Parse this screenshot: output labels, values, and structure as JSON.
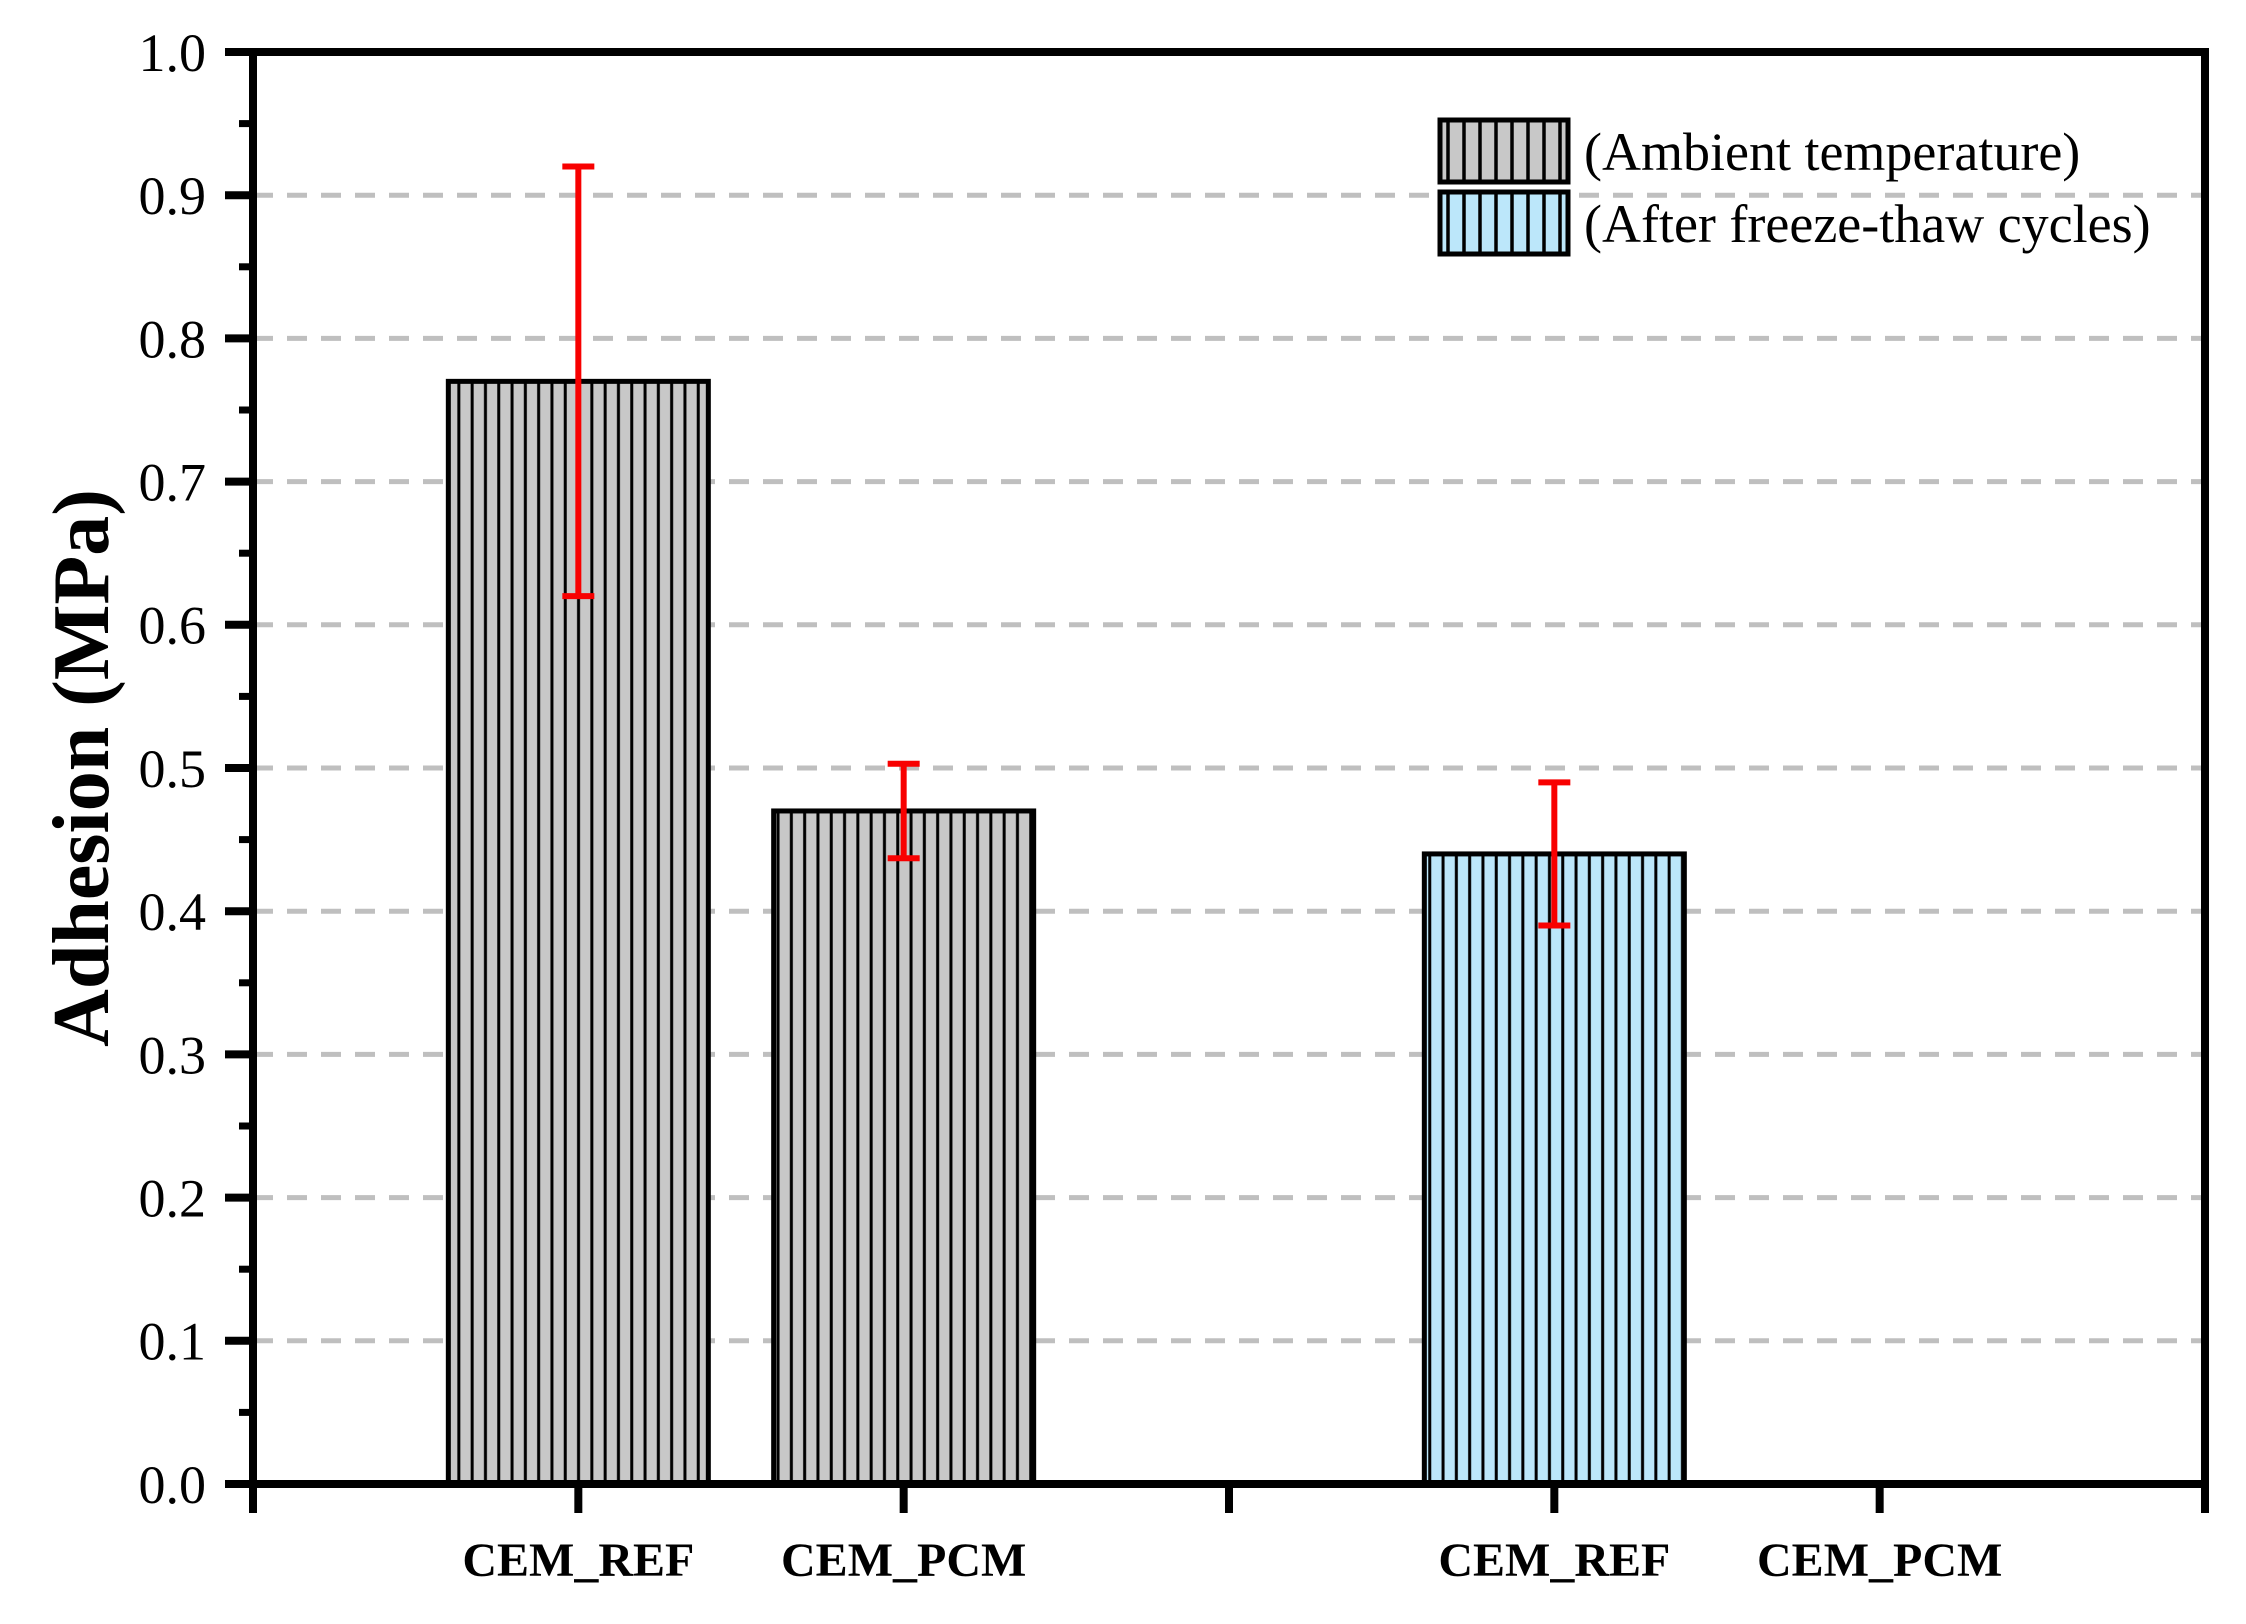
{
  "chart_data": {
    "type": "bar",
    "title": "",
    "xlabel": "",
    "ylabel": "Adhesion (MPa)",
    "ylim": [
      0.0,
      1.0
    ],
    "ytick_labels": [
      "0.0",
      "0.1",
      "0.2",
      "0.3",
      "0.4",
      "0.5",
      "0.6",
      "0.7",
      "0.8",
      "0.9",
      "1.0"
    ],
    "minor_ticks": "every 0.05",
    "grid": "horizontal dashed gridlines at each 0.1 from 0.1 to 0.9",
    "legend_position": "top-right inside plot",
    "categories": [
      "CEM_REF",
      "CEM_PCM",
      "",
      "CEM_REF",
      "CEM_PCM"
    ],
    "series": [
      {
        "name": "(Ambient temperature)",
        "fill_color": "#c8c8c8",
        "hatch": "vertical-lines",
        "points": [
          {
            "category_index": 0,
            "category": "CEM_REF",
            "value": 0.77,
            "error": 0.15
          },
          {
            "category_index": 1,
            "category": "CEM_PCM",
            "value": 0.47,
            "error": 0.033
          }
        ]
      },
      {
        "name": "(After freeze-thaw cycles)",
        "fill_color": "#bce7fa",
        "hatch": "vertical-lines",
        "points": [
          {
            "category_index": 3,
            "category": "CEM_REF",
            "value": 0.44,
            "error": 0.05
          },
          {
            "category_index": 4,
            "category": "CEM_PCM",
            "value": 0.0,
            "error": null
          }
        ]
      }
    ],
    "colors": {
      "error_bar": "#f80000",
      "gridline": "#bfbfbf",
      "axis": "#000000",
      "hatch_line": "#000000",
      "background": "#ffffff"
    }
  }
}
